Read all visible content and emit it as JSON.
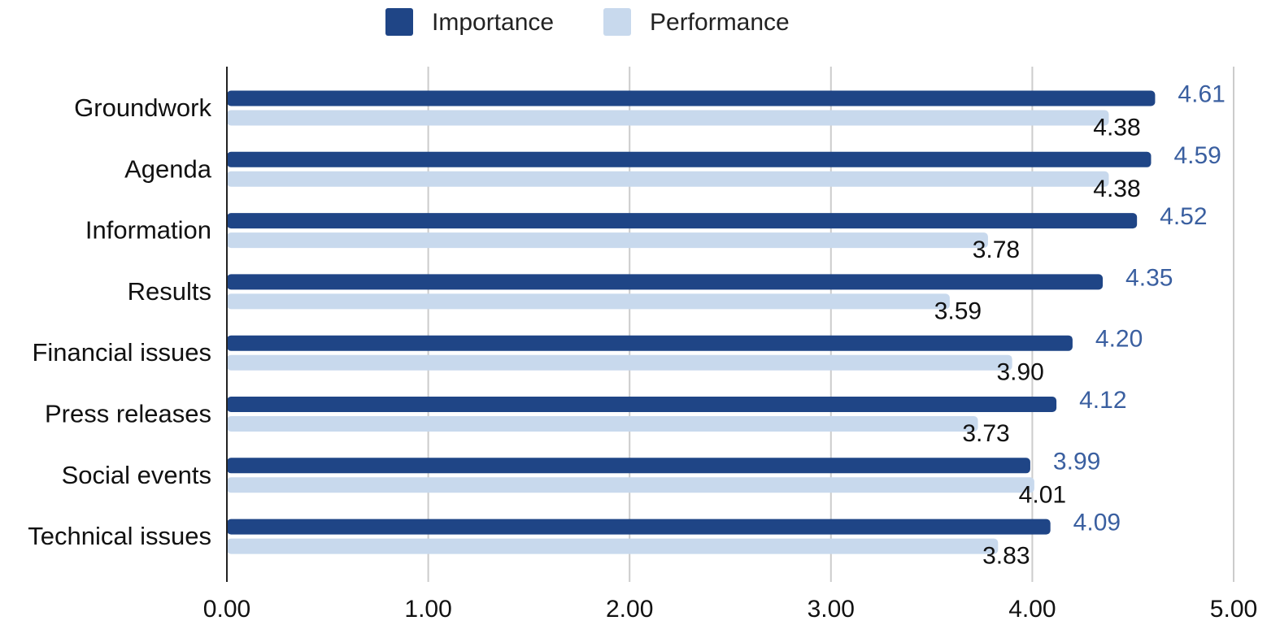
{
  "chart_data": {
    "type": "bar",
    "orientation": "horizontal",
    "categories": [
      "Groundwork",
      "Agenda",
      "Information",
      "Results",
      "Financial issues",
      "Press releases",
      "Social events",
      "Technical issues"
    ],
    "series": [
      {
        "name": "Importance",
        "color": "#1f4586",
        "label_color": "#3a5fa0",
        "values": [
          4.61,
          4.59,
          4.52,
          4.35,
          4.2,
          4.12,
          3.99,
          4.09
        ],
        "labels": [
          "4.61",
          "4.59",
          "4.52",
          "4.35",
          "4.20",
          "4.12",
          "3.99",
          "4.09"
        ]
      },
      {
        "name": "Performance",
        "color": "#c8d9ed",
        "label_color": "#111111",
        "values": [
          4.38,
          4.38,
          3.78,
          3.59,
          3.9,
          3.73,
          4.01,
          3.83
        ],
        "labels": [
          "4.38",
          "4.38",
          "3.78",
          "3.59",
          "3.90",
          "3.73",
          "4.01",
          "3.83"
        ]
      }
    ],
    "xlim": [
      0,
      5
    ],
    "xticks": [
      0,
      1,
      2,
      3,
      4,
      5
    ],
    "xtick_labels": [
      "0.00",
      "1.00",
      "2.00",
      "3.00",
      "4.00",
      "5.00"
    ],
    "grid": "vertical",
    "legend_position": "top",
    "data_labels": true
  }
}
